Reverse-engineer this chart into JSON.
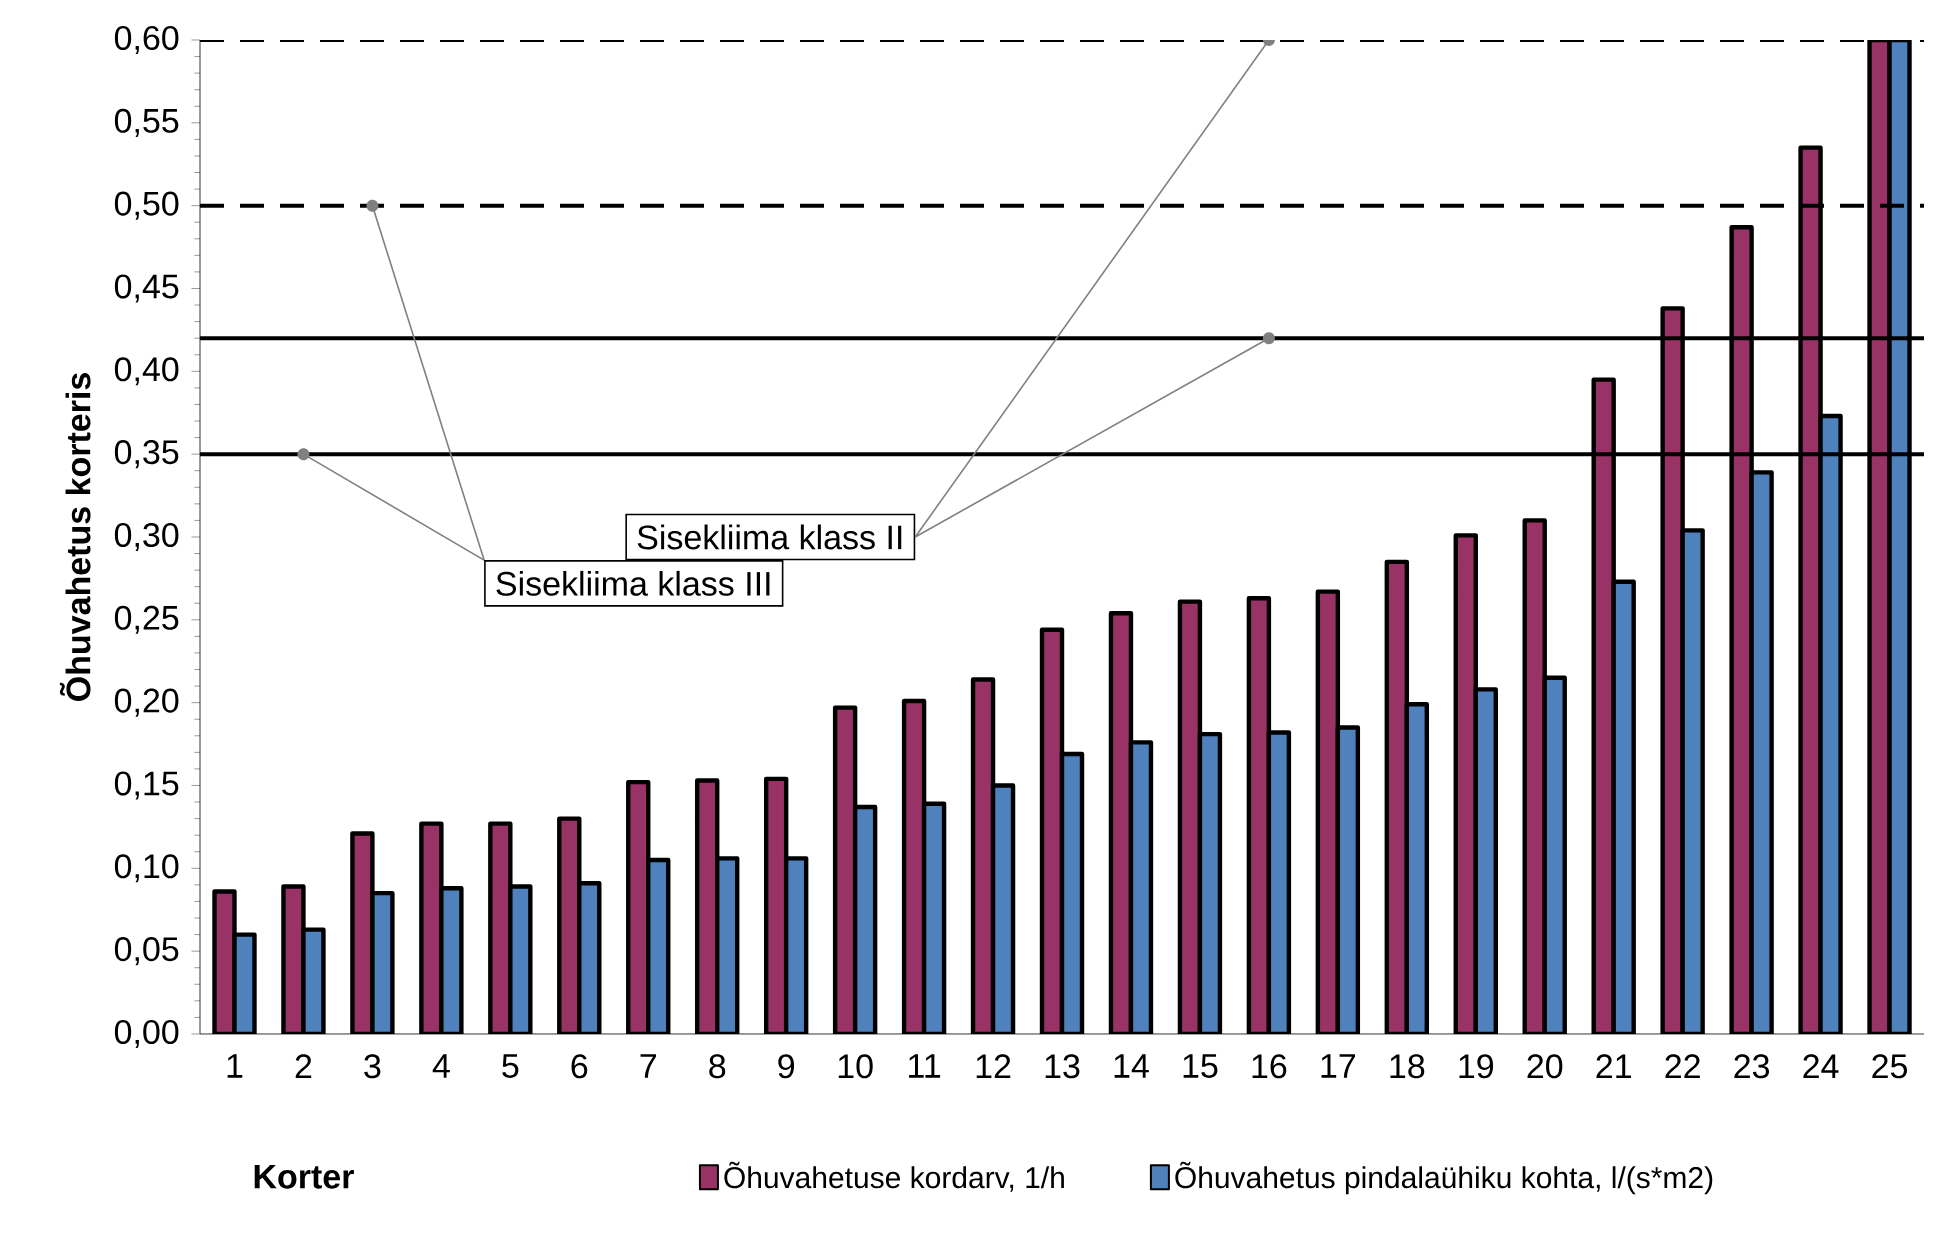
{
  "chart_data": {
    "type": "bar",
    "xlabel": "Korter",
    "ylabel": "Õhuvahetus korteris",
    "categories": [
      "1",
      "2",
      "3",
      "4",
      "5",
      "6",
      "7",
      "8",
      "9",
      "10",
      "11",
      "12",
      "13",
      "14",
      "15",
      "16",
      "17",
      "18",
      "19",
      "20",
      "21",
      "22",
      "23",
      "24",
      "25"
    ],
    "series": [
      {
        "name": "Õhuvahetuse kordarv, 1/h",
        "color": "#993366",
        "values": [
          0.086,
          0.089,
          0.121,
          0.127,
          0.127,
          0.13,
          0.152,
          0.153,
          0.154,
          0.197,
          0.201,
          0.214,
          0.244,
          0.254,
          0.261,
          0.263,
          0.267,
          0.285,
          0.301,
          0.31,
          0.395,
          0.438,
          0.487,
          0.535,
          0.6
        ]
      },
      {
        "name": "Õhuvahetus pindalaühiku kohta, l/(s*m2)",
        "color": "#4f81bd",
        "values": [
          0.06,
          0.063,
          0.085,
          0.088,
          0.089,
          0.091,
          0.105,
          0.106,
          0.106,
          0.137,
          0.139,
          0.15,
          0.169,
          0.176,
          0.181,
          0.182,
          0.185,
          0.199,
          0.208,
          0.215,
          0.273,
          0.304,
          0.339,
          0.373,
          0.6
        ]
      }
    ],
    "ylim": [
      0,
      0.6
    ],
    "yticks": [
      {
        "value": 0,
        "label": "0,00"
      },
      {
        "value": 0.05,
        "label": "0,05"
      },
      {
        "value": 0.1,
        "label": "0,10"
      },
      {
        "value": 0.15,
        "label": "0,15"
      },
      {
        "value": 0.2,
        "label": "0,20"
      },
      {
        "value": 0.25,
        "label": "0,25"
      },
      {
        "value": 0.3,
        "label": "0,30"
      },
      {
        "value": 0.35,
        "label": "0,35"
      },
      {
        "value": 0.4,
        "label": "0,40"
      },
      {
        "value": 0.45,
        "label": "0,45"
      },
      {
        "value": 0.5,
        "label": "0,50"
      },
      {
        "value": 0.55,
        "label": "0,55"
      },
      {
        "value": 0.6,
        "label": "0,60"
      }
    ],
    "ref_lines": [
      {
        "axis": "y",
        "value": 0.35,
        "line_style": "solid",
        "color": "#000000"
      },
      {
        "axis": "y",
        "value": 0.42,
        "line_style": "solid",
        "color": "#000000"
      },
      {
        "axis": "y",
        "value": 0.5,
        "line_style": "dashed",
        "color": "#000000"
      },
      {
        "axis": "y",
        "value": 0.6,
        "line_style": "dashed",
        "color": "#000000"
      }
    ],
    "annotations": [
      {
        "text": "Sisekliima klass II",
        "x": "16",
        "y": 0.42
      },
      {
        "text": "Sisekliima klass III",
        "x": "2",
        "y": 0.35
      }
    ],
    "legend": "bottom",
    "grid": false
  }
}
